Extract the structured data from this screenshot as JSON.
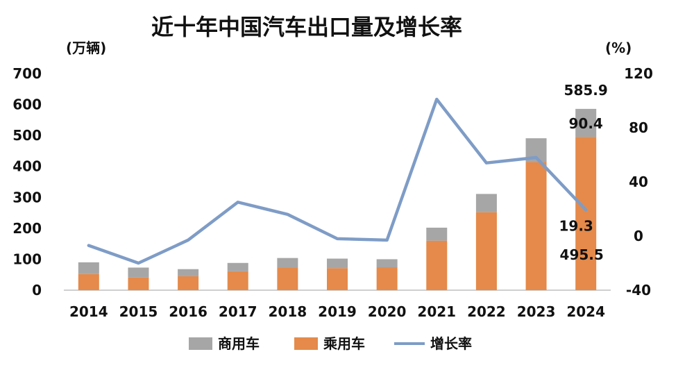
{
  "chart_data": {
    "type": "bar",
    "title": "近十年中国汽车出口量及增长率",
    "y_unit_left": "(万辆)",
    "y_unit_right": "(%)",
    "categories": [
      "2014",
      "2015",
      "2016",
      "2017",
      "2018",
      "2019",
      "2020",
      "2021",
      "2022",
      "2023",
      "2024"
    ],
    "series": [
      {
        "name": "乘用车",
        "kind": "bar",
        "axis": "left",
        "color": "#E58A4A",
        "values": [
          52,
          41,
          45,
          61,
          73,
          71,
          74,
          160,
          252,
          414,
          495.5
        ]
      },
      {
        "name": "商用车",
        "kind": "bar",
        "axis": "left",
        "color": "#A6A6A6",
        "values": [
          38,
          32,
          23,
          27,
          31,
          31,
          26,
          42,
          59,
          77,
          90.4
        ]
      },
      {
        "name": "增长率",
        "kind": "line",
        "axis": "left-scale-right",
        "color": "#7E9CC6",
        "values": [
          -7,
          -20,
          -3,
          25,
          16,
          -2,
          -3,
          101,
          54,
          58,
          19.3
        ]
      }
    ],
    "ylim_left": [
      0,
      700
    ],
    "yticks_left": [
      "0",
      "100",
      "200",
      "300",
      "400",
      "500",
      "600",
      "700"
    ],
    "ylim_right": [
      -40,
      120
    ],
    "yticks_right": [
      "-40",
      "0",
      "40",
      "80",
      "120"
    ],
    "annotations": {
      "total_2024": "585.9",
      "commercial_2024": "90.4",
      "growth_2024": "19.3",
      "passenger_2024": "495.5"
    },
    "legend": {
      "position": "bottom",
      "items": [
        "商用车",
        "乘用车",
        "增长率"
      ]
    },
    "grid": false
  }
}
